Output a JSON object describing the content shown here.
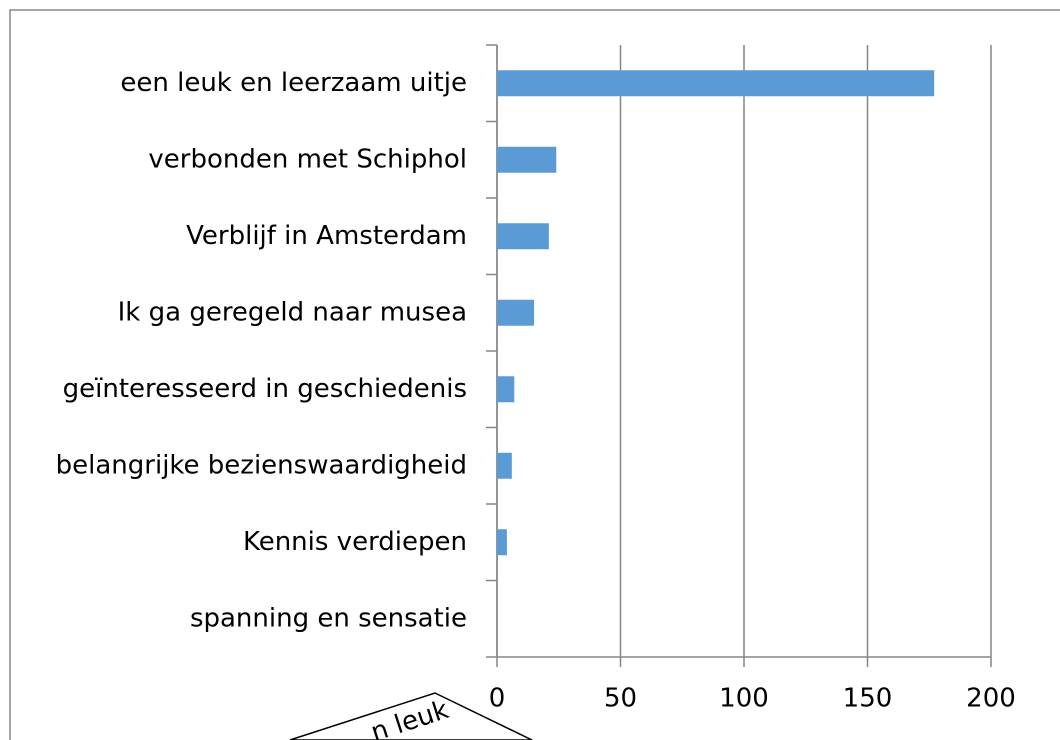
{
  "chart_data": {
    "type": "bar",
    "orientation": "horizontal",
    "categories": [
      "een leuk en leerzaam uitje",
      "verbonden met Schiphol",
      "Verblijf in Amsterdam",
      "Ik ga geregeld naar musea",
      "geïnteresseerd in geschiedenis",
      "belangrijke bezienswaardigheid",
      "Kennis verdiepen",
      "spanning en sensatie"
    ],
    "values": [
      177,
      24,
      21,
      15,
      7,
      6,
      4,
      0
    ],
    "color": "#5b9bd5",
    "xlim": [
      0,
      200
    ],
    "xticks": [
      0,
      50,
      100,
      150,
      200
    ],
    "grid": true,
    "annotation": "n leuk"
  }
}
